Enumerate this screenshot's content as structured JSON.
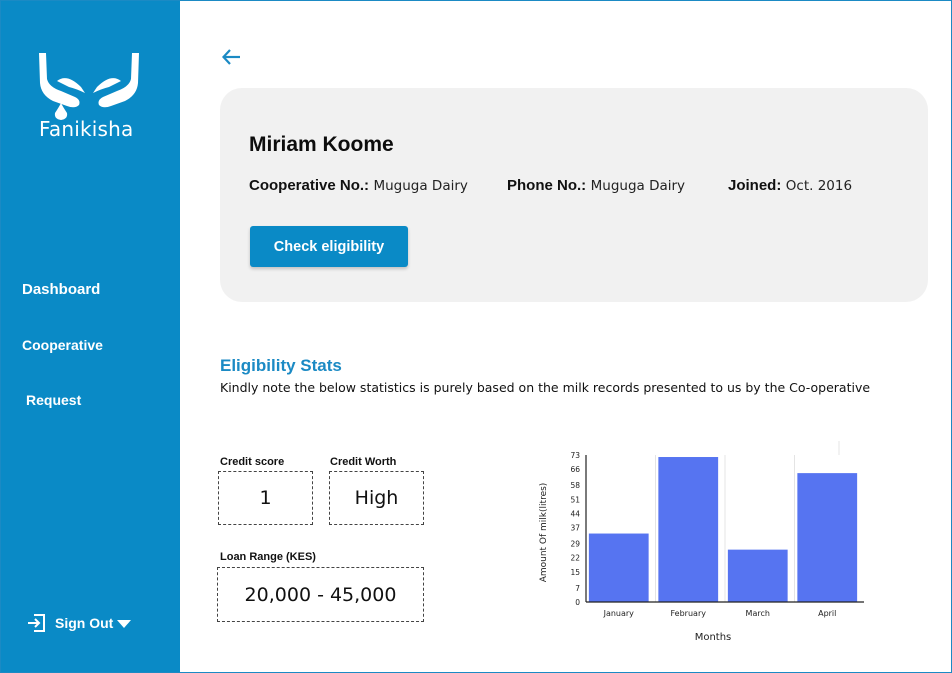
{
  "app": {
    "name": "Fanikisha"
  },
  "sidebar": {
    "items": [
      {
        "label": "Dashboard"
      },
      {
        "label": "Cooperative"
      },
      {
        "label": "Request"
      }
    ],
    "signout_label": "Sign Out"
  },
  "member": {
    "name": "Miriam Koome",
    "cooperative_label": "Cooperative No.:",
    "cooperative_value": "Muguga Dairy",
    "phone_label": "Phone No.:",
    "phone_value": "Muguga Dairy",
    "joined_label": "Joined:",
    "joined_value": "Oct. 2016",
    "check_button_label": "Check eligibility"
  },
  "eligibility": {
    "title": "Eligibility Stats",
    "note": "Kindly note the below statistics is purely based on the milk records presented to us by the Co-operative",
    "credit_score_label": "Credit score",
    "credit_score_value": "1",
    "credit_worth_label": "Credit Worth",
    "credit_worth_value": "High",
    "loan_range_label": "Loan Range (KES)",
    "loan_range_value": "20,000 - 45,000"
  },
  "colors": {
    "brand": "#0a8ac6",
    "bar": "#5674f1"
  },
  "chart_data": {
    "type": "bar",
    "categories": [
      "January",
      "February",
      "March",
      "April"
    ],
    "values": [
      34,
      72,
      26,
      64
    ],
    "xlabel": "Months",
    "ylabel": "Amount Of milk(litres)",
    "yticks": [
      0,
      7,
      15,
      22,
      29,
      37,
      44,
      51,
      58,
      66,
      73
    ],
    "ylim": [
      0,
      73
    ],
    "grid": "vertical"
  }
}
